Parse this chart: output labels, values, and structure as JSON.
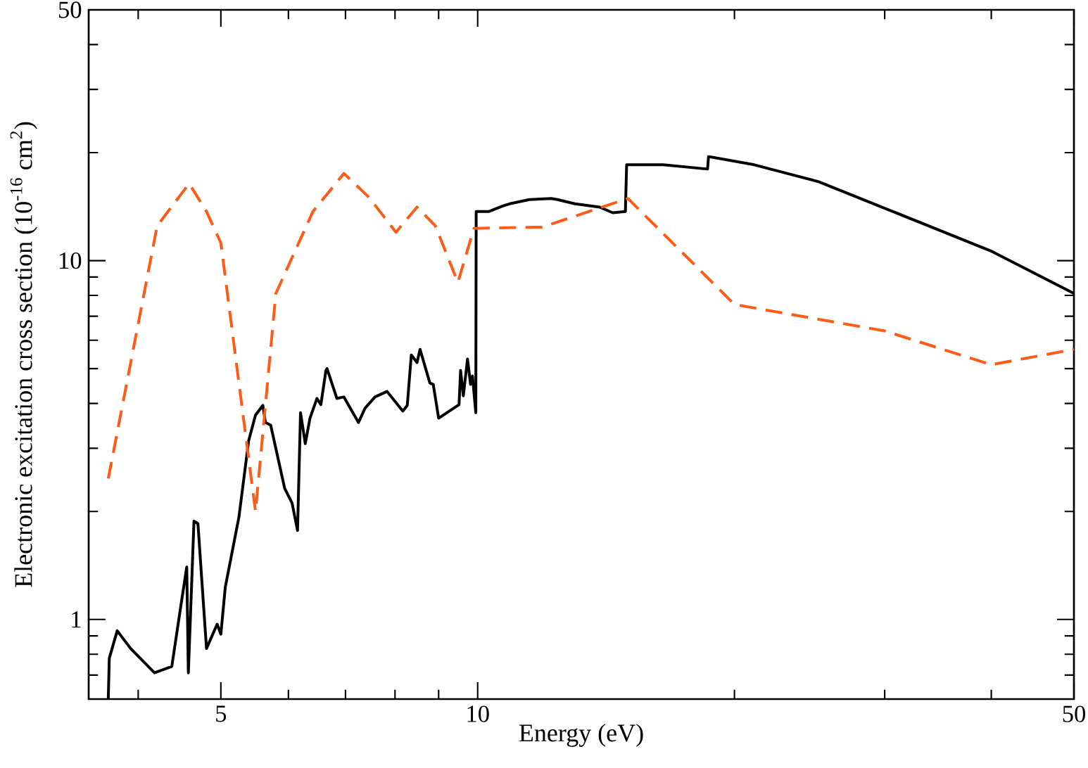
{
  "chart_data": {
    "type": "line",
    "xlabel": "Energy (eV)",
    "ylabel": "Electronic excitation cross section (10$^{-16}$ cm$^{2}$)",
    "log": "xy",
    "grid": false,
    "marker": "none",
    "xlim": [
      3.5,
      50
    ],
    "ylim": [
      0.6,
      50
    ],
    "xticks": [
      {
        "value": 4,
        "label": null
      },
      5,
      {
        "value": 6,
        "label": null
      },
      {
        "value": 7,
        "label": null
      },
      {
        "value": 8,
        "label": null
      },
      {
        "value": 9,
        "label": null
      },
      10,
      {
        "value": 20,
        "label": null
      },
      {
        "value": 30,
        "label": null
      },
      {
        "value": 40,
        "label": null
      },
      50
    ],
    "yticks": [
      {
        "value": 0.7,
        "label": null
      },
      {
        "value": 0.8,
        "label": null
      },
      {
        "value": 0.9,
        "label": null
      },
      1,
      {
        "value": 2,
        "label": null
      },
      {
        "value": 3,
        "label": null
      },
      {
        "value": 4,
        "label": null
      },
      {
        "value": 5,
        "label": null
      },
      {
        "value": 6,
        "label": null
      },
      {
        "value": 7,
        "label": null
      },
      {
        "value": 8,
        "label": null
      },
      {
        "value": 9,
        "label": null
      },
      10,
      {
        "value": 20,
        "label": null
      },
      {
        "value": 30,
        "label": null
      },
      {
        "value": 40,
        "label": null
      },
      50
    ],
    "series": [
      {
        "color": "#000000",
        "line_style": "solid",
        "x": [
          3.69,
          3.7,
          3.78,
          3.92,
          4.18,
          4.38,
          4.48,
          4.56,
          4.58,
          4.65,
          4.7,
          4.81,
          4.95,
          5.0,
          5.06,
          5.25,
          5.39,
          5.49,
          5.6,
          5.64,
          5.72,
          5.94,
          6.06,
          6.15,
          6.2,
          6.28,
          6.36,
          6.48,
          6.55,
          6.64,
          6.66,
          6.84,
          6.97,
          7.25,
          7.38,
          7.58,
          7.83,
          8.17,
          8.27,
          8.36,
          8.49,
          8.56,
          8.79,
          8.87,
          9.0,
          9.51,
          9.55,
          9.62,
          9.73,
          9.81,
          9.86,
          9.95,
          9.96,
          10.3,
          10.7,
          10.9,
          11.5,
          12.2,
          12.4,
          13.0,
          13.9,
          14.4,
          14.9,
          14.95,
          16.5,
          18.6,
          18.65,
          21.1,
          25.1,
          30,
          40.1,
          50
        ],
        "values": [
          0.6,
          0.78,
          0.93,
          0.83,
          0.71,
          0.74,
          1.06,
          1.4,
          0.71,
          1.88,
          1.85,
          0.83,
          0.97,
          0.91,
          1.23,
          1.93,
          3.15,
          3.71,
          3.95,
          3.54,
          3.48,
          2.32,
          2.11,
          1.77,
          3.77,
          3.09,
          3.64,
          4.13,
          3.97,
          4.94,
          5.0,
          4.13,
          4.17,
          3.54,
          3.88,
          4.17,
          4.32,
          3.81,
          3.95,
          5.46,
          5.2,
          5.66,
          4.56,
          4.52,
          3.64,
          3.97,
          4.94,
          4.2,
          5.32,
          4.52,
          4.77,
          3.77,
          13.7,
          13.7,
          14.2,
          14.4,
          14.8,
          14.9,
          14.8,
          14.4,
          14.1,
          13.6,
          13.7,
          18.5,
          18.5,
          18.0,
          19.5,
          18.5,
          16.6,
          14.0,
          10.6,
          8.1
        ]
      },
      {
        "color": "#ff5b17",
        "line_style": "dashed",
        "x": [
          3.69,
          4.21,
          4.59,
          4.81,
          5.0,
          5.49,
          5.8,
          6.41,
          6.97,
          7.46,
          8.02,
          8.49,
          8.92,
          9.48,
          9.9,
          11.9,
          15.0,
          20,
          30,
          40,
          50
        ],
        "values": [
          2.47,
          12.5,
          16.4,
          13.7,
          11.2,
          2.0,
          8.1,
          13.7,
          17.5,
          15.0,
          12.0,
          14.1,
          12.5,
          8.7,
          12.3,
          12.4,
          14.9,
          7.55,
          6.37,
          5.13,
          5.66
        ]
      }
    ]
  }
}
